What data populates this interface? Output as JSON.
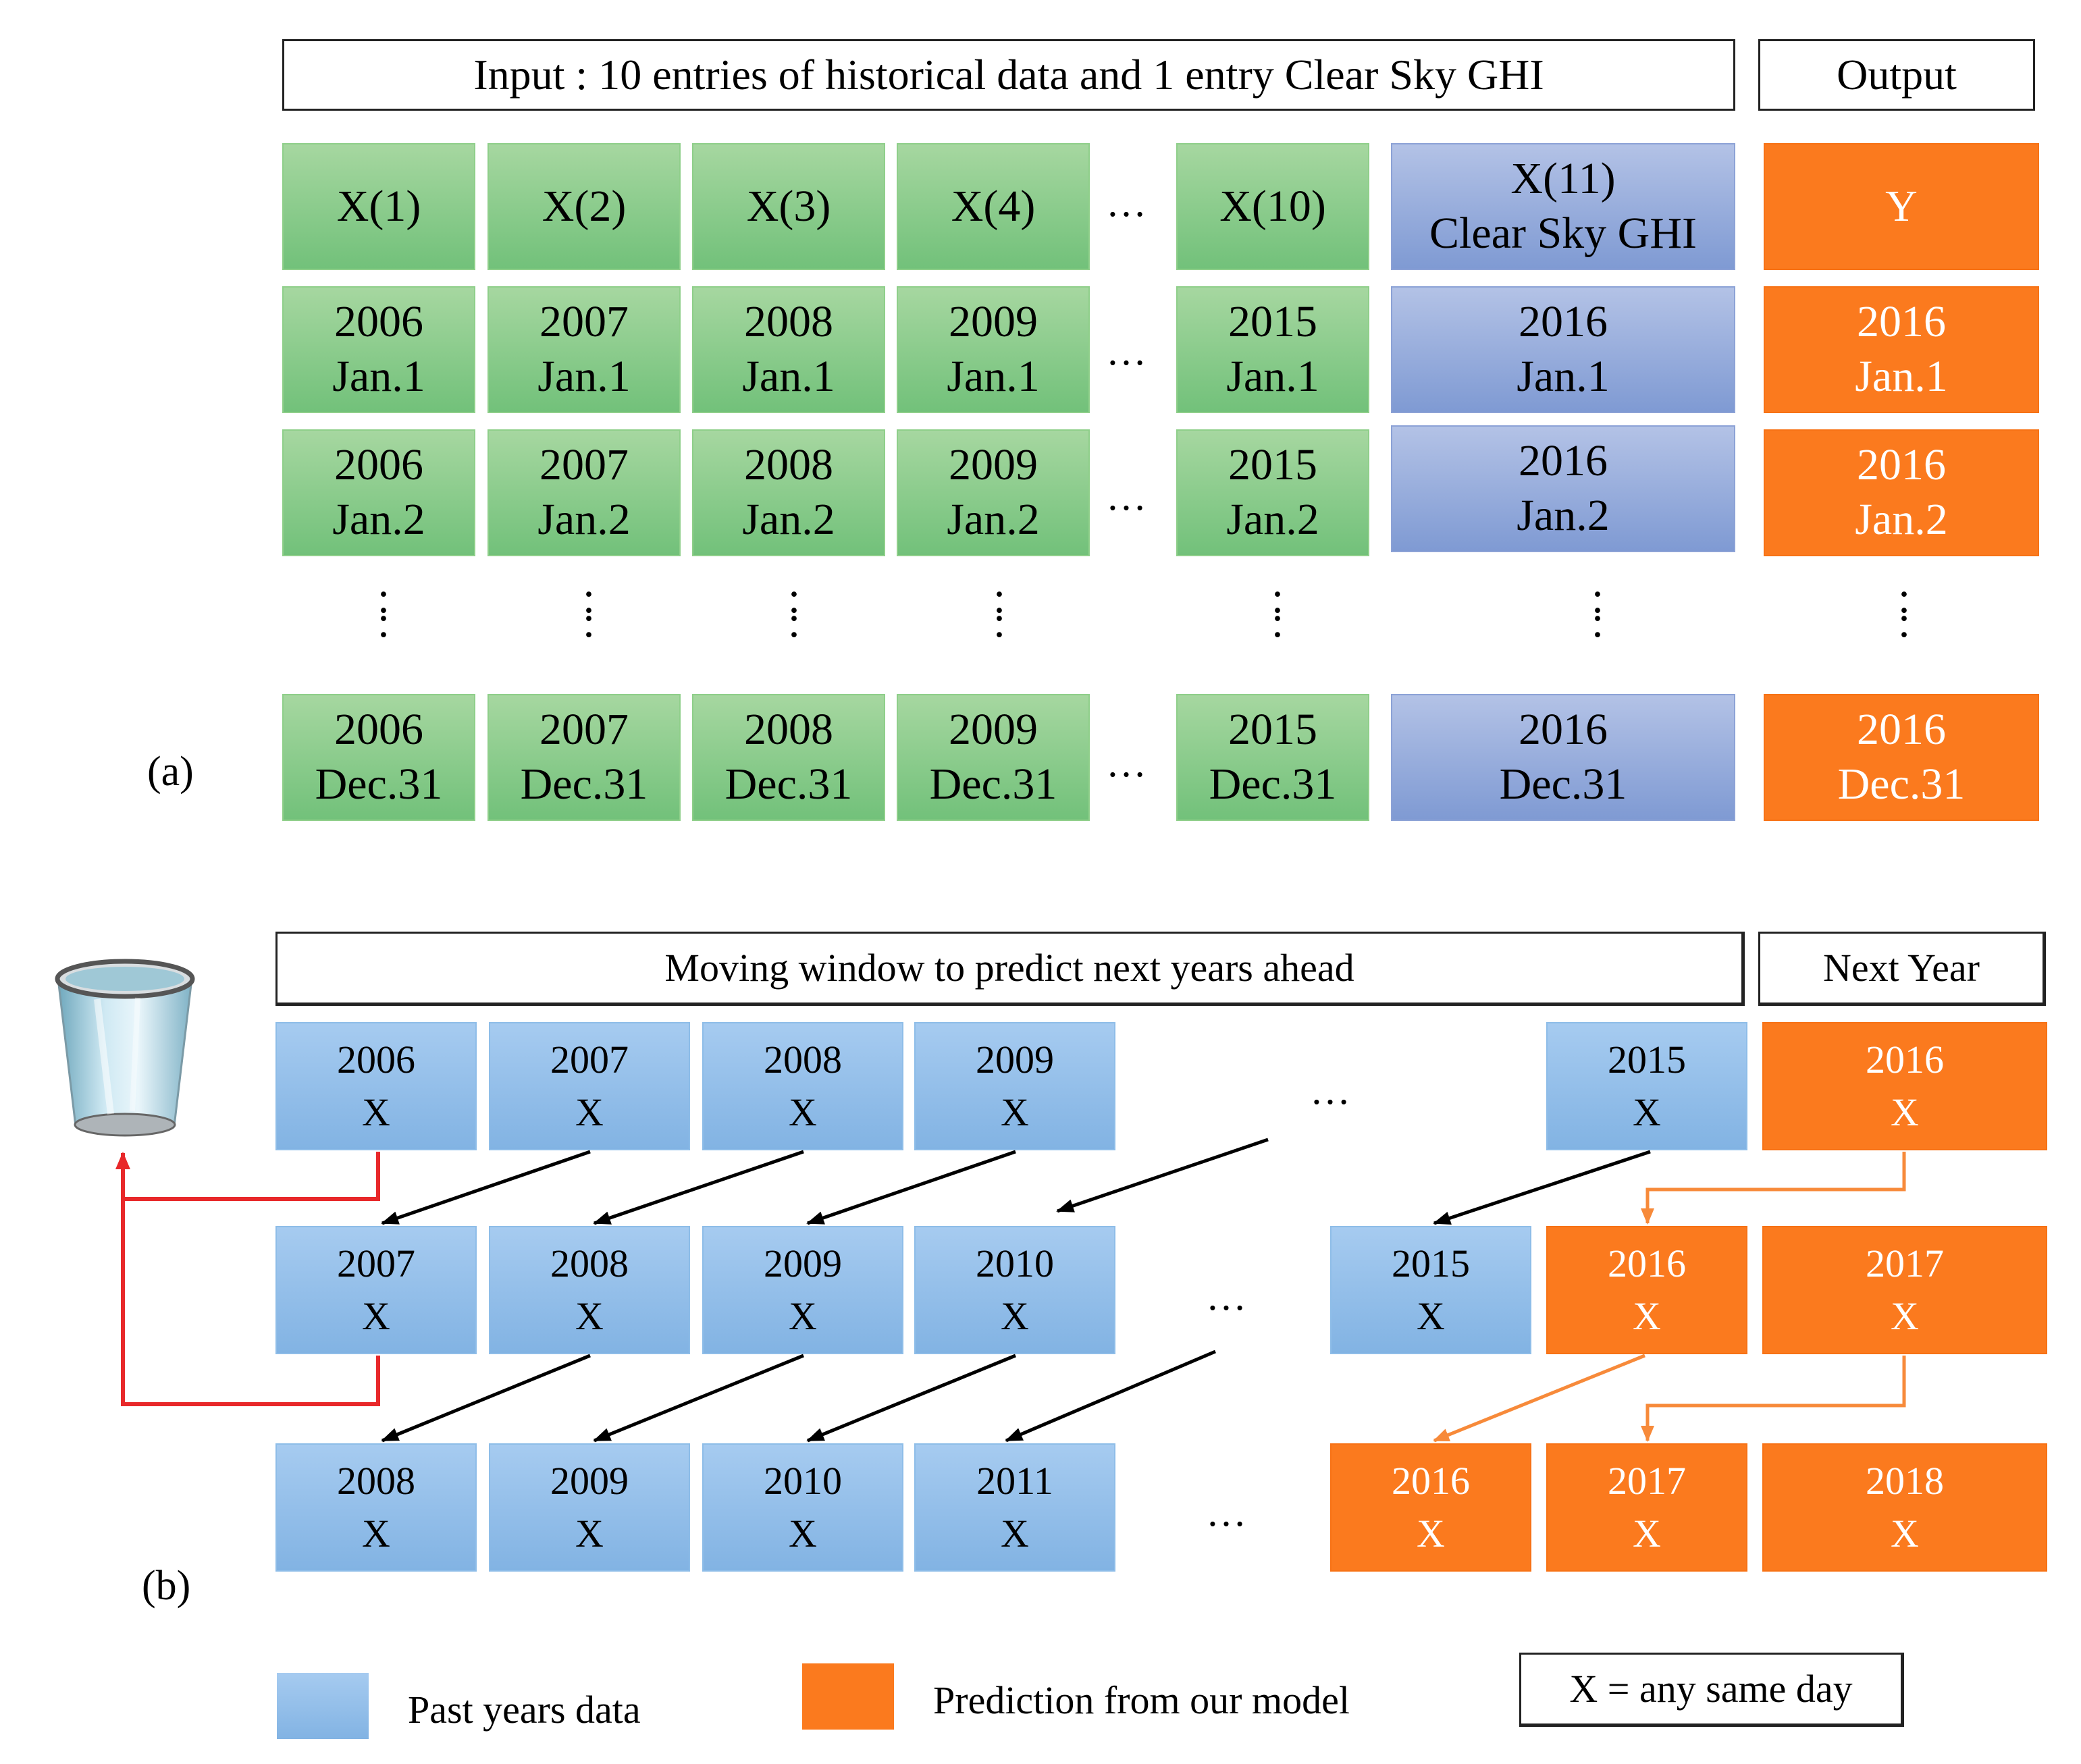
{
  "panel_a": {
    "label": "(a)",
    "input_header": "Input : 10 entries of historical data and 1 entry Clear Sky GHI",
    "output_header": "Output",
    "ellipsis": "…",
    "vertical_dots": ":",
    "columns": [
      {
        "header": "X(1)",
        "rows": [
          [
            "2006",
            "Jan.1"
          ],
          [
            "2006",
            "Jan.2"
          ],
          [
            "2006",
            "Dec.31"
          ]
        ]
      },
      {
        "header": "X(2)",
        "rows": [
          [
            "2007",
            "Jan.1"
          ],
          [
            "2007",
            "Jan.2"
          ],
          [
            "2007",
            "Dec.31"
          ]
        ]
      },
      {
        "header": "X(3)",
        "rows": [
          [
            "2008",
            "Jan.1"
          ],
          [
            "2008",
            "Jan.2"
          ],
          [
            "2008",
            "Dec.31"
          ]
        ]
      },
      {
        "header": "X(4)",
        "rows": [
          [
            "2009",
            "Jan.1"
          ],
          [
            "2009",
            "Jan.2"
          ],
          [
            "2009",
            "Dec.31"
          ]
        ]
      },
      {
        "header": "X(10)",
        "rows": [
          [
            "2015",
            "Jan.1"
          ],
          [
            "2015",
            "Jan.2"
          ],
          [
            "2015",
            "Dec.31"
          ]
        ]
      }
    ],
    "clear_sky": {
      "header_line1": "X(11)",
      "header_line2": "Clear Sky GHI",
      "rows": [
        [
          "2016",
          "Jan.1"
        ],
        [
          "2016",
          "Jan.2"
        ],
        [
          "2016",
          "Dec.31"
        ]
      ]
    },
    "output": {
      "header": "Y",
      "rows": [
        [
          "2016",
          "Jan.1"
        ],
        [
          "2016",
          "Jan.2"
        ],
        [
          "2016",
          "Dec.31"
        ]
      ]
    }
  },
  "panel_b": {
    "label": "(b)",
    "window_header": "Moving window to predict next years ahead",
    "next_year_header": "Next Year",
    "day_symbol": "X",
    "ellipsis": "…",
    "row1_past": [
      "2006",
      "2007",
      "2008",
      "2009",
      "2015"
    ],
    "row1_next": "2016",
    "row2_past": [
      "2007",
      "2008",
      "2009",
      "2010",
      "2015"
    ],
    "row2_pred": [
      "2016",
      "2017"
    ],
    "row3_past": [
      "2008",
      "2009",
      "2010",
      "2011"
    ],
    "row3_pred": [
      "2016",
      "2017",
      "2018"
    ]
  },
  "legend": {
    "past_label": "Past years data",
    "prediction_label": "Prediction from our model",
    "key_label": "X = any same day"
  },
  "icons": {
    "discard": "trash-bin-icon"
  },
  "colors": {
    "green": "#80c682",
    "purple": "#93a9dc",
    "orange": "#fb7a1e",
    "blue": "#93c0ea",
    "red": "#e8282a"
  }
}
